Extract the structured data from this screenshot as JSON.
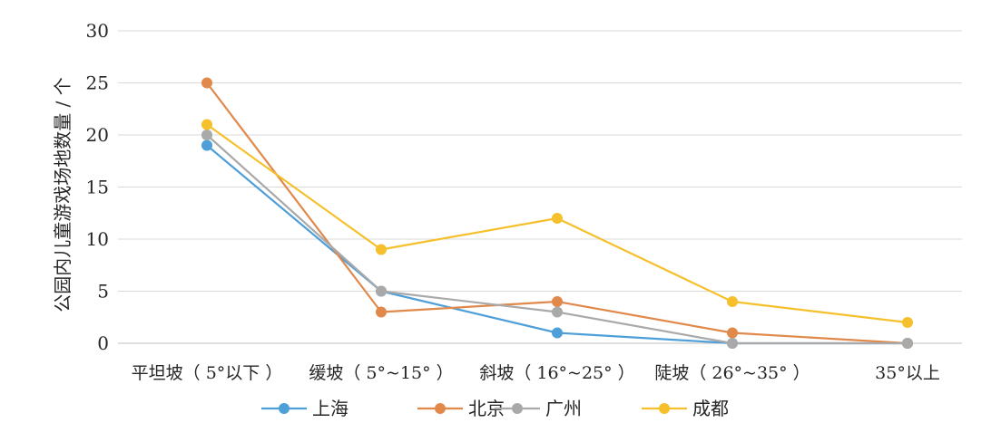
{
  "chart_data": {
    "type": "line",
    "title": "",
    "xlabel": "",
    "ylabel": "公园内儿童游戏场地数量 / 个",
    "categories": [
      "平坦坡（ 5°以下 ）",
      "缓坡（ 5°~15° ）",
      "斜坡（ 16°~25° ）",
      "陡坡（ 26°~35° ）",
      "35°以上"
    ],
    "ylim": [
      0,
      30
    ],
    "yticks": [
      "0",
      "5",
      "10",
      "15",
      "20",
      "25",
      "30"
    ],
    "grid": true,
    "legend_position": "bottom",
    "series": [
      {
        "name": "上海",
        "color": "#4E9FD8",
        "values": [
          19,
          5,
          1,
          0,
          0
        ]
      },
      {
        "name": "北京",
        "color": "#E0894B",
        "values": [
          25,
          3,
          4,
          1,
          0
        ]
      },
      {
        "name": "广州",
        "color": "#A9A9A9",
        "values": [
          20,
          5,
          3,
          0,
          0
        ]
      },
      {
        "name": "成都",
        "color": "#F5C02B",
        "values": [
          21,
          9,
          12,
          4,
          2
        ]
      }
    ]
  }
}
